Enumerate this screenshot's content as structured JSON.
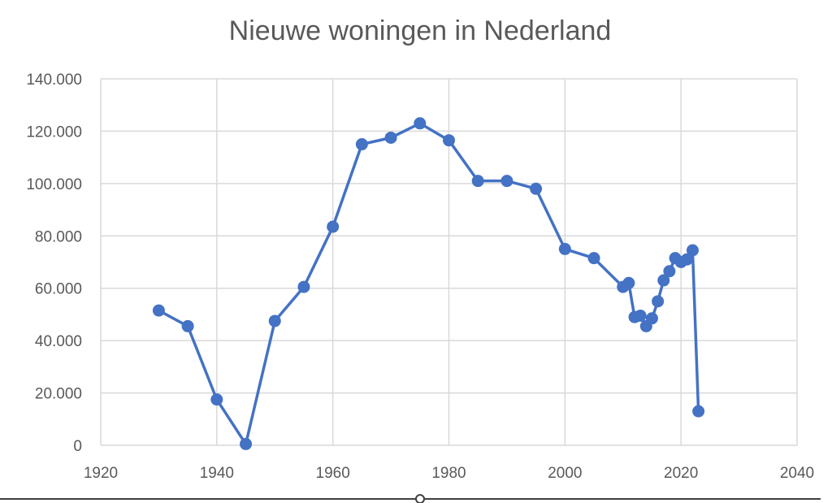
{
  "chart_data": {
    "type": "line",
    "title": "Nieuwe woningen in Nederland",
    "xlabel": "",
    "ylabel": "",
    "xlim": [
      1920,
      2040
    ],
    "ylim": [
      0,
      140000
    ],
    "x_ticks": [
      1920,
      1940,
      1960,
      1980,
      2000,
      2020,
      2040
    ],
    "x_tick_labels": [
      "1920",
      "1940",
      "1960",
      "1980",
      "2000",
      "2020",
      "2040"
    ],
    "y_ticks": [
      0,
      20000,
      40000,
      60000,
      80000,
      100000,
      120000,
      140000
    ],
    "y_tick_labels": [
      "0",
      "20.000",
      "40.000",
      "60.000",
      "80.000",
      "100.000",
      "120.000",
      "140.000"
    ],
    "grid": true,
    "legend": "none",
    "series": [
      {
        "color": "#4472c4",
        "x": [
          1930,
          1935,
          1940,
          1945,
          1950,
          1955,
          1960,
          1965,
          1970,
          1975,
          1980,
          1985,
          1990,
          1995,
          2000,
          2005,
          2010,
          2011,
          2012,
          2013,
          2014,
          2015,
          2016,
          2017,
          2018,
          2019,
          2020,
          2021,
          2022,
          2023
        ],
        "y": [
          51500,
          45500,
          17500,
          500,
          47500,
          60500,
          83500,
          115000,
          117500,
          123000,
          116500,
          101000,
          101000,
          98000,
          75000,
          71500,
          60500,
          62000,
          49000,
          49500,
          45500,
          48500,
          55000,
          63000,
          66500,
          71500,
          70000,
          71000,
          74500,
          13000
        ]
      }
    ]
  }
}
